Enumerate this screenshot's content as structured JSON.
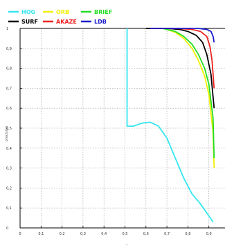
{
  "chart_data": {
    "type": "line",
    "xlabel": "recall",
    "ylabel": "precision",
    "xlim": [
      0,
      1
    ],
    "ylim": [
      0,
      1
    ],
    "x_ticks": [
      "0",
      "0,1",
      "0,2",
      "0,3",
      "0,4",
      "0,5",
      "0,6",
      "0,7",
      "0,8",
      "0,9"
    ],
    "y_ticks": [
      "0",
      "0,1",
      "0,2",
      "0,3",
      "0,4",
      "0,5",
      "0,6",
      "0,7",
      "0,8",
      "0,9",
      "1"
    ],
    "grid": true,
    "legend_position": "top",
    "series": [
      {
        "name": "HOG",
        "color": "#33e6f0",
        "points": [
          [
            0.51,
            1.0
          ],
          [
            0.51,
            0.51
          ],
          [
            0.54,
            0.51
          ],
          [
            0.58,
            0.525
          ],
          [
            0.62,
            0.53
          ],
          [
            0.66,
            0.51
          ],
          [
            0.7,
            0.45
          ],
          [
            0.74,
            0.35
          ],
          [
            0.78,
            0.25
          ],
          [
            0.82,
            0.17
          ],
          [
            0.86,
            0.12
          ],
          [
            0.9,
            0.06
          ],
          [
            0.92,
            0.03
          ]
        ]
      },
      {
        "name": "ORB",
        "color": "#f0f000",
        "points": [
          [
            0.62,
            1.0
          ],
          [
            0.68,
            1.0
          ],
          [
            0.7,
            0.995
          ],
          [
            0.74,
            0.98
          ],
          [
            0.78,
            0.95
          ],
          [
            0.82,
            0.9
          ],
          [
            0.85,
            0.84
          ],
          [
            0.88,
            0.76
          ],
          [
            0.9,
            0.67
          ],
          [
            0.92,
            0.48
          ],
          [
            0.925,
            0.3
          ]
        ]
      },
      {
        "name": "BRIEF",
        "color": "#22dd22",
        "points": [
          [
            0.62,
            1.0
          ],
          [
            0.68,
            1.0
          ],
          [
            0.7,
            0.995
          ],
          [
            0.74,
            0.985
          ],
          [
            0.78,
            0.96
          ],
          [
            0.82,
            0.92
          ],
          [
            0.85,
            0.87
          ],
          [
            0.88,
            0.8
          ],
          [
            0.9,
            0.72
          ],
          [
            0.92,
            0.55
          ],
          [
            0.925,
            0.35
          ]
        ]
      },
      {
        "name": "SURF",
        "color": "#000000",
        "points": [
          [
            0.6,
            1.0
          ],
          [
            0.7,
            1.0
          ],
          [
            0.76,
            0.995
          ],
          [
            0.8,
            0.985
          ],
          [
            0.84,
            0.965
          ],
          [
            0.87,
            0.93
          ],
          [
            0.89,
            0.87
          ],
          [
            0.91,
            0.77
          ],
          [
            0.925,
            0.6
          ]
        ]
      },
      {
        "name": "AKAZE",
        "color": "#ee2222",
        "points": [
          [
            0.62,
            1.0
          ],
          [
            0.75,
            1.0
          ],
          [
            0.82,
            0.995
          ],
          [
            0.86,
            0.985
          ],
          [
            0.89,
            0.96
          ],
          [
            0.905,
            0.91
          ],
          [
            0.915,
            0.84
          ],
          [
            0.925,
            0.7
          ]
        ]
      },
      {
        "name": "LDB",
        "color": "#1a1acc",
        "points": [
          [
            0.62,
            1.0
          ],
          [
            0.85,
            1.0
          ],
          [
            0.89,
            0.995
          ],
          [
            0.91,
            0.985
          ],
          [
            0.92,
            0.96
          ],
          [
            0.925,
            0.93
          ]
        ]
      }
    ]
  }
}
